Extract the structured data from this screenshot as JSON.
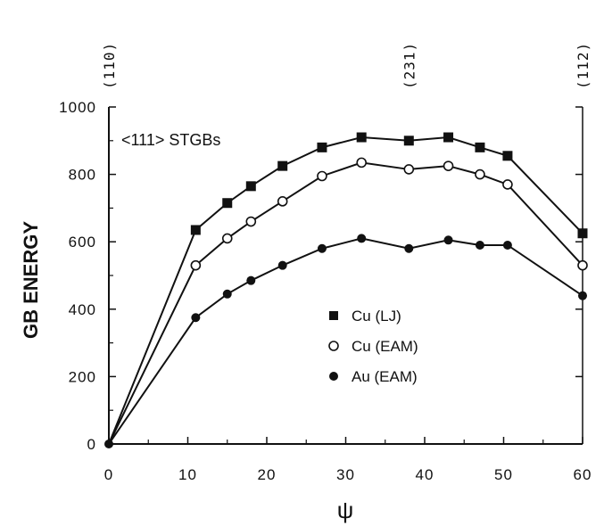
{
  "chart_data": {
    "type": "line",
    "title": "",
    "xlabel": "ψ",
    "ylabel": "GB ENERGY",
    "xlim": [
      0,
      60
    ],
    "ylim": [
      0,
      1000
    ],
    "x_ticks": [
      0,
      10,
      20,
      30,
      40,
      50,
      60
    ],
    "x_tick_labels": [
      "0",
      "10",
      "20",
      "30",
      "40",
      "50",
      "60"
    ],
    "y_ticks": [
      0,
      200,
      400,
      600,
      800,
      1000
    ],
    "y_tick_labels": [
      "0",
      "200",
      "400",
      "600",
      "800",
      "1000"
    ],
    "grid": false,
    "legend_position": "center-right",
    "annotation": "<111> STGBs",
    "top_axis_labels": [
      {
        "x": 0,
        "label": "(110)"
      },
      {
        "x": 38,
        "label": "(231)"
      },
      {
        "x": 60,
        "label": "(112)"
      }
    ],
    "series": [
      {
        "name": "Cu (LJ)",
        "marker": "filled-square",
        "x": [
          0,
          11,
          15,
          18,
          22,
          27,
          32,
          38,
          43,
          47,
          50.5,
          60
        ],
        "y": [
          0,
          635,
          715,
          765,
          825,
          880,
          910,
          900,
          910,
          880,
          855,
          625
        ]
      },
      {
        "name": "Cu (EAM)",
        "marker": "open-circle",
        "x": [
          0,
          11,
          15,
          18,
          22,
          27,
          32,
          38,
          43,
          47,
          50.5,
          60
        ],
        "y": [
          0,
          530,
          610,
          660,
          720,
          795,
          835,
          815,
          825,
          800,
          770,
          530
        ]
      },
      {
        "name": "Au (EAM)",
        "marker": "filled-circle",
        "x": [
          0,
          11,
          15,
          18,
          22,
          27,
          32,
          38,
          43,
          47,
          50.5,
          60
        ],
        "y": [
          0,
          375,
          445,
          485,
          530,
          580,
          610,
          580,
          605,
          590,
          590,
          440
        ]
      }
    ]
  }
}
